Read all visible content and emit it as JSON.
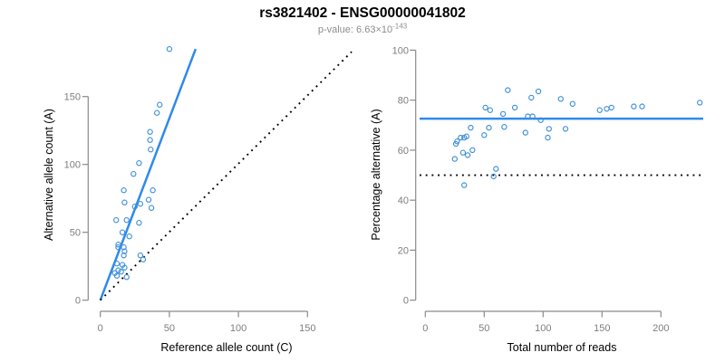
{
  "header": {
    "title": "rs3821402 - ENSG00000041802",
    "subtitle": {
      "label": "p-value: ",
      "mantissa": "6.63",
      "times": "×",
      "base": "10",
      "exponent": "-143"
    }
  },
  "colors": {
    "accent_blue": "#2e8aea",
    "point_blue": "#3e8fd9",
    "axis_gray": "#8a8a8a",
    "tick_text_gray": "#7e7e7e",
    "label_black": "#000000",
    "dotted_black": "#000000",
    "background": "#ffffff"
  },
  "chart_data": [
    {
      "type": "scatter",
      "name": "allele-counts-scatter",
      "title": "",
      "xlabel": "Reference allele count (C)",
      "ylabel": "Alternative allele count (A)",
      "xlim": [
        0,
        150
      ],
      "ylim": [
        0,
        150
      ],
      "xticks": [
        0,
        50,
        100,
        150
      ],
      "yticks": [
        0,
        50,
        100,
        150
      ],
      "grid": false,
      "marker": "open-circle",
      "points": [
        [
          50,
          185
        ],
        [
          43,
          144
        ],
        [
          41,
          138
        ],
        [
          36,
          124
        ],
        [
          36,
          118
        ],
        [
          36.5,
          111
        ],
        [
          28,
          101
        ],
        [
          24,
          93
        ],
        [
          38,
          81
        ],
        [
          17,
          81
        ],
        [
          35,
          74
        ],
        [
          17.5,
          72
        ],
        [
          29,
          71
        ],
        [
          25,
          69
        ],
        [
          37,
          68
        ],
        [
          11.5,
          59
        ],
        [
          19,
          59
        ],
        [
          28,
          57
        ],
        [
          16,
          50
        ],
        [
          21,
          47
        ],
        [
          13,
          41
        ],
        [
          13,
          39
        ],
        [
          17,
          39
        ],
        [
          17.5,
          36
        ],
        [
          17,
          33
        ],
        [
          29,
          33
        ],
        [
          31,
          30
        ],
        [
          12,
          27
        ],
        [
          16,
          26
        ],
        [
          17.5,
          24
        ],
        [
          13,
          22
        ],
        [
          15,
          21
        ],
        [
          10.5,
          20
        ],
        [
          12,
          18
        ],
        [
          19,
          17
        ]
      ],
      "lines": [
        {
          "kind": "regression-line",
          "style": "solid",
          "color": "accent_blue",
          "from": [
            0,
            0
          ],
          "to": [
            69,
            185
          ]
        },
        {
          "kind": "identity-line",
          "style": "dotted",
          "color": "dotted_black",
          "from": [
            0,
            0
          ],
          "to": [
            182,
            183
          ]
        }
      ]
    },
    {
      "type": "scatter",
      "name": "percentage-vs-reads-scatter",
      "title": "",
      "xlabel": "Total number of reads",
      "ylabel": "Percentage alternative (A)",
      "xlim": [
        0,
        200
      ],
      "ylim": [
        0,
        100
      ],
      "xticks": [
        0,
        50,
        100,
        150,
        200
      ],
      "yticks": [
        0,
        20,
        40,
        60,
        80,
        100
      ],
      "grid": false,
      "marker": "open-circle",
      "points": [
        [
          25,
          56.5
        ],
        [
          26,
          62.5
        ],
        [
          27,
          63.5
        ],
        [
          30,
          65
        ],
        [
          33,
          65
        ],
        [
          35,
          65.5
        ],
        [
          32,
          59
        ],
        [
          36,
          58
        ],
        [
          38.5,
          69
        ],
        [
          40,
          60
        ],
        [
          33,
          46
        ],
        [
          50,
          66
        ],
        [
          51,
          77
        ],
        [
          54,
          69
        ],
        [
          55,
          76
        ],
        [
          58,
          49.5
        ],
        [
          60,
          52.5
        ],
        [
          66,
          74.5
        ],
        [
          67,
          69.3
        ],
        [
          70,
          84
        ],
        [
          76,
          77
        ],
        [
          85,
          67
        ],
        [
          87,
          73.5
        ],
        [
          90,
          81
        ],
        [
          91,
          73.5
        ],
        [
          96,
          83.5
        ],
        [
          98,
          72
        ],
        [
          104,
          65
        ],
        [
          105,
          68.5
        ],
        [
          115,
          80.5
        ],
        [
          119,
          68.5
        ],
        [
          125,
          78.5
        ],
        [
          148,
          76
        ],
        [
          154,
          76.5
        ],
        [
          158,
          77
        ],
        [
          177,
          77.5
        ],
        [
          184,
          77.5
        ],
        [
          233,
          79
        ]
      ],
      "lines": [
        {
          "kind": "mean-percentage-line",
          "style": "solid",
          "color": "accent_blue",
          "hline": 72.6
        },
        {
          "kind": "fifty-percent-line",
          "style": "dotted",
          "color": "dotted_black",
          "hline": 50
        }
      ]
    }
  ]
}
